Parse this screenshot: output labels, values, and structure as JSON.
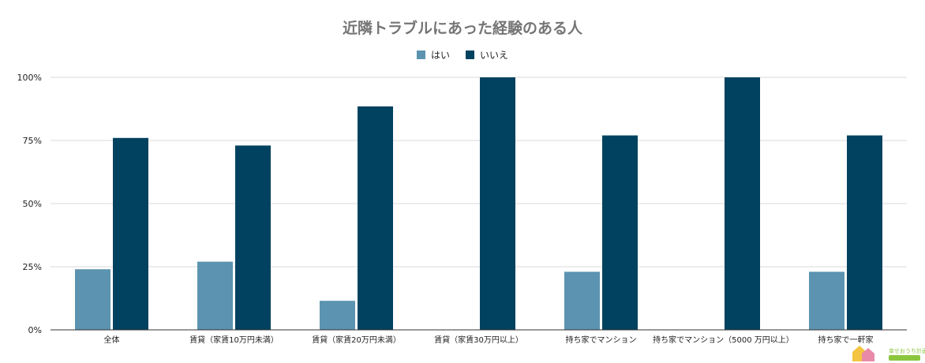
{
  "chart_data": {
    "type": "bar",
    "title": "近隣トラブルにあった経験のある人",
    "xlabel": "",
    "ylabel": "",
    "categories": [
      "全体",
      "賃貸（家賃10万円未満）",
      "賃貸（家賃20万円未満）",
      "賃貸（家賃30万円以上）",
      "持ち家でマンション",
      "持ち家でマンション（5000 万円以上）",
      "持ち家で一軒家"
    ],
    "series": [
      {
        "name": "はい",
        "color": "#5b93b0",
        "values": [
          24,
          27,
          11.5,
          0,
          23,
          0,
          23
        ]
      },
      {
        "name": "いいえ",
        "color": "#00425f",
        "values": [
          76,
          73,
          88.5,
          100,
          77,
          100,
          77
        ]
      }
    ],
    "ylim": [
      0,
      100
    ],
    "yticks": [
      "0%",
      "25%",
      "50%",
      "75%",
      "100%"
    ],
    "ytick_values": [
      0,
      25,
      50,
      75,
      100
    ],
    "grid": true,
    "legend_position": "top-center"
  },
  "watermark": {
    "text": "幸せおうち計画"
  }
}
